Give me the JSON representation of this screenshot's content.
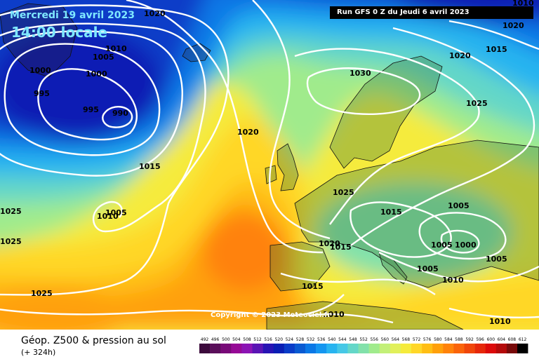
{
  "header": {
    "date": "Mercredi 19 avril 2023",
    "time": "14:00 locale",
    "run": "Run GFS 0 Z du Jeudi 6 avril 2023"
  },
  "copyright": "Copyright © 2023 Meteociel.fr",
  "footer": {
    "title": "Géop. Z500 & pression au sol",
    "subtitle": "(+ 324h)"
  },
  "scale": {
    "labels": [
      "492",
      "496",
      "500",
      "504",
      "508",
      "512",
      "516",
      "520",
      "524",
      "528",
      "532",
      "536",
      "540",
      "544",
      "548",
      "552",
      "556",
      "560",
      "564",
      "568",
      "572",
      "576",
      "580",
      "584",
      "588",
      "592",
      "596",
      "600",
      "604",
      "608",
      "612"
    ],
    "colors": [
      "#3c0a3c",
      "#5a0f5a",
      "#780a78",
      "#960a96",
      "#8c14b4",
      "#5a14b4",
      "#2814b4",
      "#0a1eb4",
      "#0a3cc8",
      "#0a5ad2",
      "#0a78e6",
      "#1496f0",
      "#28b4f0",
      "#46c8e6",
      "#64d7c8",
      "#82e1aa",
      "#a0eb8c",
      "#c3f078",
      "#e1f05a",
      "#f5eb3c",
      "#ffd728",
      "#ffbe14",
      "#ffa00a",
      "#ff820a",
      "#fa640a",
      "#f0460a",
      "#e6280a",
      "#dc0a0a",
      "#b40a0a",
      "#780a0a",
      "#000000"
    ]
  },
  "pressure_labels": [
    "1020",
    "1010",
    "1005",
    "1000",
    "1000",
    "995",
    "995",
    "990",
    "1020",
    "1015",
    "1025",
    "1005",
    "1010",
    "1025",
    "1025",
    "1030",
    "1020",
    "1015",
    "1025",
    "1020",
    "1025",
    "1015",
    "1005",
    "1020",
    "1015",
    "1005",
    "1000",
    "1005",
    "1005",
    "1010",
    "1015",
    "1010",
    "1010",
    "1025",
    "1025",
    "1020",
    "1010"
  ]
}
